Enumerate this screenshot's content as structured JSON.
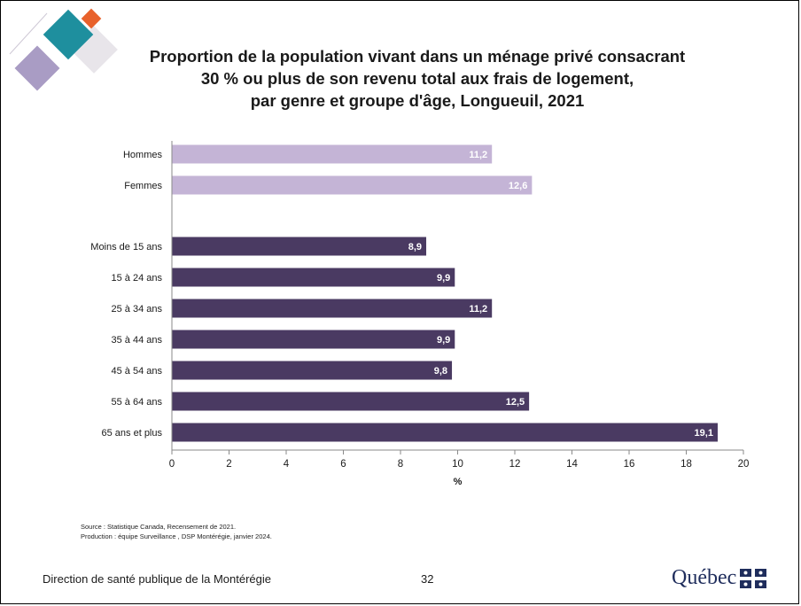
{
  "title_lines": [
    "Proportion de la population vivant dans un ménage privé consacrant",
    "30 % ou plus de son revenu total aux frais de logement,",
    "par genre et groupe d'âge, Longueuil, 2021"
  ],
  "chart_data": {
    "type": "bar",
    "orientation": "horizontal",
    "title": "Proportion de la population vivant dans un ménage privé consacrant 30 % ou plus de son revenu total aux frais de logement, par genre et groupe d'âge, Longueuil, 2021",
    "categories": [
      "Hommes",
      "Femmes",
      "Moins de 15 ans",
      "15 à 24 ans",
      "25 à 34 ans",
      "35 à 44 ans",
      "45 à 54 ans",
      "55 à 64 ans",
      "65 ans et plus"
    ],
    "values": [
      11.2,
      12.6,
      8.9,
      9.9,
      11.2,
      9.9,
      9.8,
      12.5,
      19.1
    ],
    "value_labels": [
      "11,2",
      "12,6",
      "8,9",
      "9,9",
      "11,2",
      "9,9",
      "9,8",
      "12,5",
      "19,1"
    ],
    "groups": [
      "genre",
      "genre",
      "age",
      "age",
      "age",
      "age",
      "age",
      "age",
      "age"
    ],
    "group_colors": {
      "genre": "#c4b4d6",
      "age": "#4a3a62"
    },
    "xlabel": "%",
    "ylabel": "",
    "xlim": [
      0,
      20
    ],
    "xticks": [
      0,
      2,
      4,
      6,
      8,
      10,
      12,
      14,
      16,
      18,
      20
    ],
    "grid": false,
    "legend": "none"
  },
  "notes": [
    "Source : Statistique Canada, Recensement de 2021.",
    "Production : équipe Surveillance , DSP Montérégie, janvier 2024."
  ],
  "footer": {
    "left": "Direction de santé publique de la Montérégie",
    "page": "32",
    "logo_text": "Québec"
  },
  "colors": {
    "logo_teal": "#1e8f9e",
    "logo_orange": "#e8622c",
    "logo_lavender": "#a99cc4",
    "logo_gray": "#e3e0e6",
    "quebec_blue": "#1f2d5c"
  }
}
